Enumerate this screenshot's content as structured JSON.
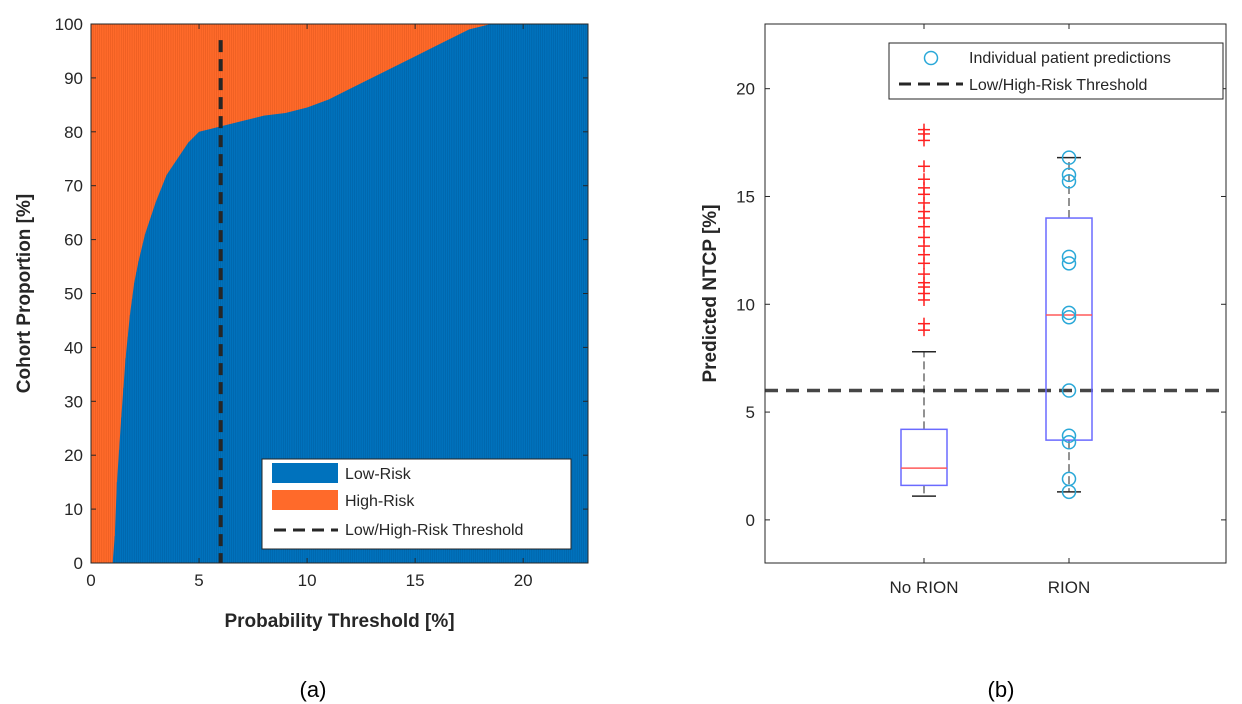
{
  "chart_data": [
    {
      "type": "area",
      "panel_label": "(a)",
      "xlabel": "Probability Threshold [%]",
      "ylabel": "Cohort Proportion [%]",
      "xlim": [
        0,
        23
      ],
      "ylim": [
        0,
        100
      ],
      "xticks": [
        0,
        5,
        10,
        15,
        20
      ],
      "yticks": [
        0,
        10,
        20,
        30,
        40,
        50,
        60,
        70,
        80,
        90,
        100
      ],
      "threshold": 6,
      "legend_placement": "bottom-right",
      "legend": [
        "Low-Risk",
        "High-Risk",
        "Low/High-Risk Threshold"
      ],
      "colors": {
        "low": "#0072bd",
        "high": "#ff6a2a",
        "threshold": "#262626"
      },
      "series": [
        {
          "name": "Low-Risk",
          "x": [
            0,
            1.0,
            1.1,
            1.2,
            1.4,
            1.6,
            1.8,
            2.0,
            2.2,
            2.5,
            3.0,
            3.5,
            4.0,
            4.5,
            5.0,
            5.5,
            6.0,
            7.0,
            8.0,
            9.0,
            10.0,
            11.0,
            12.0,
            13.0,
            14.0,
            15.0,
            16.0,
            17.0,
            17.5,
            18.0,
            18.5,
            19.0,
            20.0,
            21.0,
            22.0,
            23.0
          ],
          "values": [
            0,
            0,
            5,
            15,
            27,
            38,
            46,
            52,
            56,
            61,
            67,
            72,
            75,
            78,
            80,
            80.5,
            81,
            82,
            83,
            83.5,
            84.5,
            86,
            88,
            90,
            92,
            94,
            96,
            98,
            99,
            99.5,
            100,
            100,
            100,
            100,
            100,
            100
          ]
        },
        {
          "name": "High-Risk",
          "note_values_are": "100 minus Low-Risk",
          "values": [
            100,
            100,
            95,
            85,
            73,
            62,
            54,
            48,
            44,
            39,
            33,
            28,
            25,
            22,
            20,
            19.5,
            19,
            18,
            17,
            16.5,
            15.5,
            14,
            12,
            10,
            8,
            6,
            4,
            2,
            1,
            0.5,
            0,
            0,
            0,
            0,
            0,
            0
          ]
        }
      ]
    },
    {
      "type": "boxplot",
      "panel_label": "(b)",
      "ylabel": "Predicted NTCP [%]",
      "ylim": [
        -2,
        23
      ],
      "yticks": [
        0,
        5,
        10,
        15,
        20
      ],
      "categories": [
        "No RION",
        "RION"
      ],
      "threshold": 6,
      "legend_placement": "top-right",
      "legend": [
        "Individual patient predictions",
        "Low/High-Risk Threshold"
      ],
      "colors": {
        "box": "#6a6aff",
        "median": "#ff5a5a",
        "outlier": "#ff2020",
        "points": "#2aa8d8",
        "threshold": "#262626"
      },
      "boxes": [
        {
          "name": "No RION",
          "whisker_low": 1.1,
          "q1": 1.6,
          "median": 2.4,
          "q3": 4.2,
          "whisker_high": 7.8,
          "outliers": [
            8.8,
            9.1,
            10.2,
            10.5,
            10.8,
            11.0,
            11.4,
            11.9,
            12.3,
            12.7,
            13.1,
            13.6,
            14.0,
            14.3,
            14.7,
            15.1,
            15.4,
            15.8,
            16.4,
            17.6,
            17.9,
            18.1
          ],
          "points": []
        },
        {
          "name": "RION",
          "whisker_low": 1.3,
          "q1": 3.7,
          "median": 9.5,
          "q3": 14.0,
          "whisker_high": 16.8,
          "outliers": [],
          "points": [
            1.3,
            1.9,
            3.6,
            3.9,
            6.0,
            9.4,
            9.6,
            11.9,
            12.2,
            15.7,
            16.0,
            16.8
          ]
        }
      ]
    }
  ]
}
